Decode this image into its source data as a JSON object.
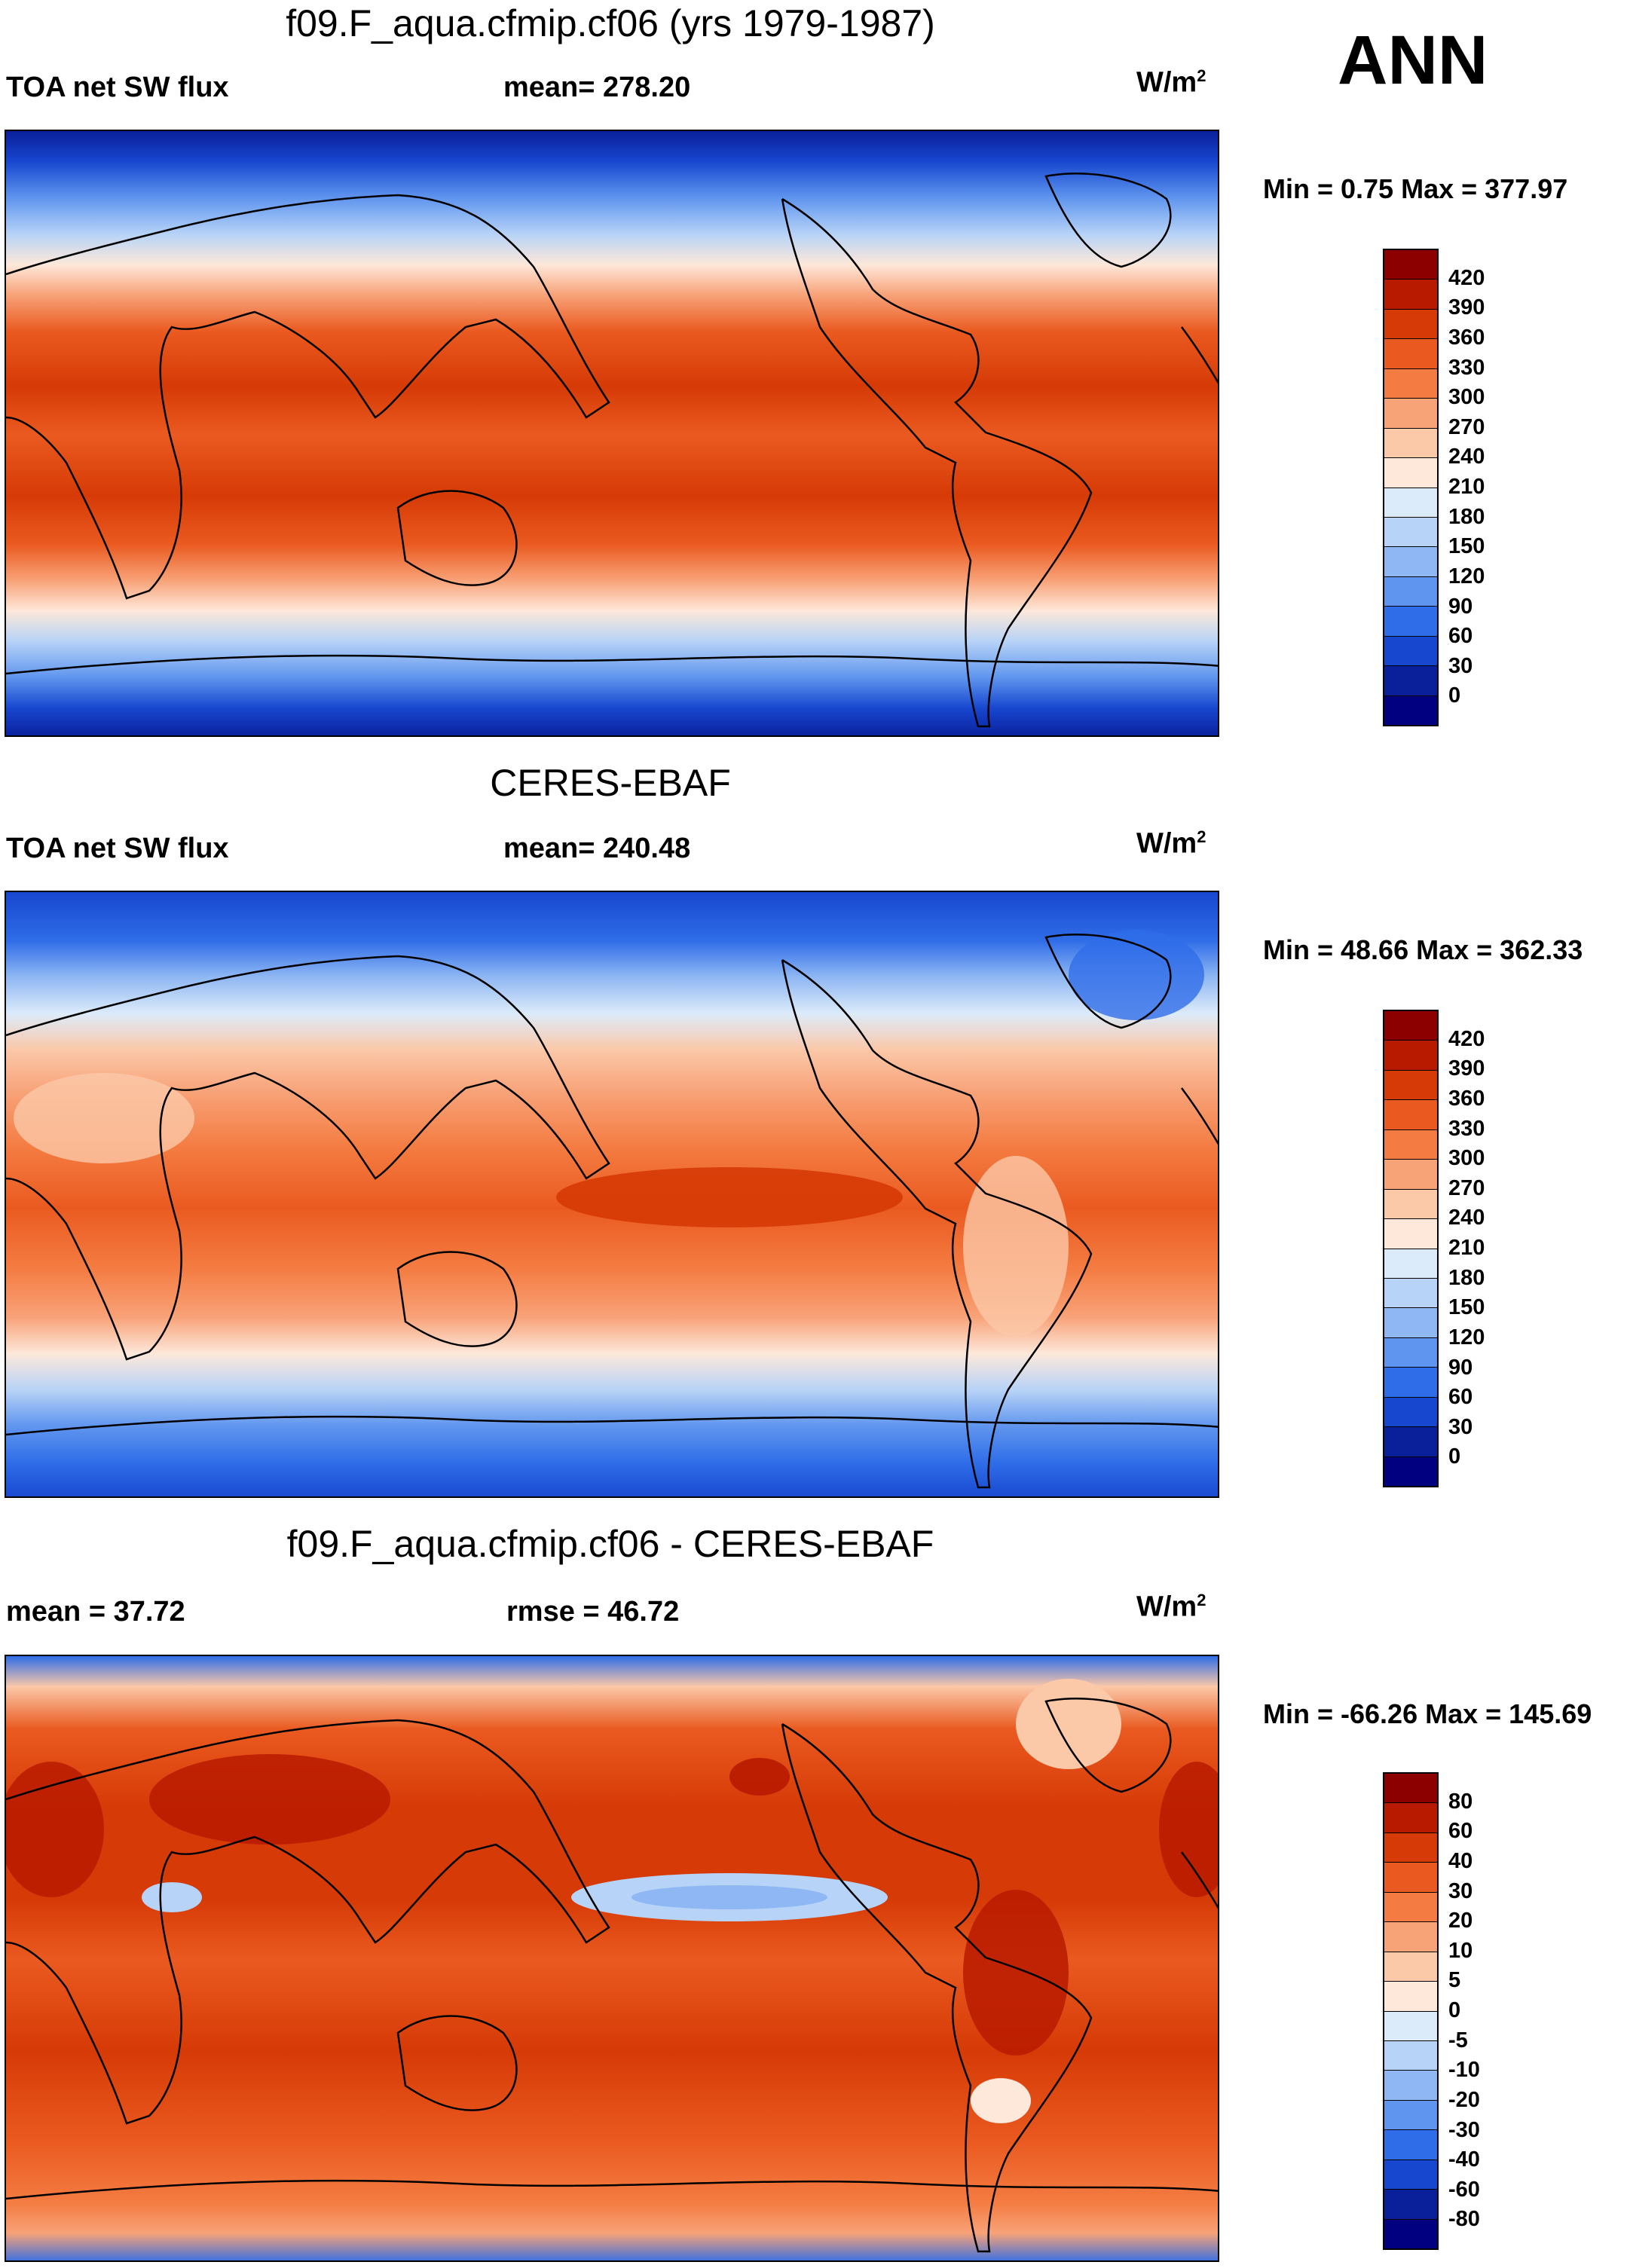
{
  "season": "ANN",
  "panels": [
    {
      "title": "f09.F_aqua.cfmip.cf06 (yrs 1979-1987)",
      "left_label": "TOA net SW flux",
      "center_label": "mean= 278.20",
      "units": "W/m",
      "units_sup": "2",
      "min_max": "Min =   0.75 Max = 377.97",
      "colorbar": {
        "levels": [
          "420",
          "390",
          "360",
          "330",
          "300",
          "270",
          "240",
          "210",
          "180",
          "150",
          "120",
          "90",
          "60",
          "30",
          "0"
        ],
        "colors": [
          "#8c0000",
          "#b81a00",
          "#d63a06",
          "#ea5a20",
          "#f47c42",
          "#f8a278",
          "#fbc8a8",
          "#fde8da",
          "#dcebfa",
          "#b7d3f7",
          "#8fb7f3",
          "#5f95ee",
          "#2f6de8",
          "#1747cf",
          "#0a1f9a",
          "#000080"
        ]
      }
    },
    {
      "title": "CERES-EBAF",
      "left_label": "TOA net SW flux",
      "center_label": "mean= 240.48",
      "units": "W/m",
      "units_sup": "2",
      "min_max": "Min =  48.66 Max = 362.33",
      "colorbar": {
        "levels": [
          "420",
          "390",
          "360",
          "330",
          "300",
          "270",
          "240",
          "210",
          "180",
          "150",
          "120",
          "90",
          "60",
          "30",
          "0"
        ],
        "colors": [
          "#8c0000",
          "#b81a00",
          "#d63a06",
          "#ea5a20",
          "#f47c42",
          "#f8a278",
          "#fbc8a8",
          "#fde8da",
          "#dcebfa",
          "#b7d3f7",
          "#8fb7f3",
          "#5f95ee",
          "#2f6de8",
          "#1747cf",
          "#0a1f9a",
          "#000080"
        ]
      }
    },
    {
      "title": "f09.F_aqua.cfmip.cf06 - CERES-EBAF",
      "left_label": "mean =  37.72",
      "center_label": "rmse =  46.72",
      "units": "W/m",
      "units_sup": "2",
      "min_max": "Min = -66.26 Max = 145.69",
      "colorbar": {
        "levels": [
          "80",
          "60",
          "40",
          "30",
          "20",
          "10",
          "5",
          "0",
          "-5",
          "-10",
          "-20",
          "-30",
          "-40",
          "-60",
          "-80"
        ],
        "colors": [
          "#8c0000",
          "#b81a00",
          "#d63a06",
          "#ea5a20",
          "#f47c42",
          "#f8a278",
          "#fbc8a8",
          "#fde8da",
          "#dcebfa",
          "#b7d3f7",
          "#8fb7f3",
          "#5f95ee",
          "#2f6de8",
          "#1747cf",
          "#0a1f9a",
          "#000080"
        ]
      }
    }
  ]
}
